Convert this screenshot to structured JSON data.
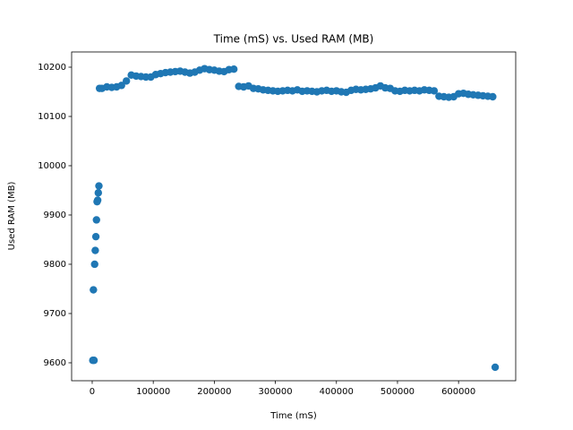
{
  "chart_data": {
    "type": "scatter",
    "title": "Time (mS) vs. Used RAM (MB)",
    "x_label": "Time (mS)",
    "y_label": "Used RAM (MB)",
    "color": "#1f77b4",
    "x": [
      1000,
      3000,
      2000,
      4000,
      5000,
      6000,
      7000,
      8000,
      9000,
      10000,
      11000,
      12000,
      16000,
      24000,
      32000,
      40000,
      48000,
      56000,
      64000,
      72000,
      80000,
      88000,
      96000,
      104000,
      112000,
      120000,
      128000,
      136000,
      144000,
      152000,
      160000,
      168000,
      176000,
      184000,
      192000,
      200000,
      208000,
      216000,
      224000,
      232000,
      240000,
      248000,
      256000,
      264000,
      272000,
      280000,
      288000,
      296000,
      304000,
      312000,
      320000,
      328000,
      336000,
      344000,
      352000,
      360000,
      368000,
      376000,
      384000,
      392000,
      400000,
      408000,
      416000,
      424000,
      432000,
      440000,
      448000,
      456000,
      464000,
      472000,
      480000,
      488000,
      496000,
      504000,
      512000,
      520000,
      528000,
      536000,
      544000,
      552000,
      560000,
      568000,
      576000,
      584000,
      592000,
      600000,
      608000,
      616000,
      624000,
      632000,
      640000,
      648000,
      656000,
      660000
    ],
    "values": [
      9605,
      9605,
      9748,
      9800,
      9828,
      9856,
      9890,
      9927,
      9930,
      9945,
      9959,
      10157,
      10157,
      10160,
      10159,
      10160,
      10163,
      10172,
      10184,
      10182,
      10181,
      10180,
      10180,
      10185,
      10187,
      10189,
      10190,
      10191,
      10192,
      10190,
      10188,
      10190,
      10194,
      10197,
      10195,
      10194,
      10192,
      10191,
      10195,
      10196,
      10161,
      10160,
      10162,
      10157,
      10156,
      10154,
      10153,
      10152,
      10151,
      10152,
      10153,
      10152,
      10154,
      10151,
      10152,
      10151,
      10150,
      10152,
      10153,
      10151,
      10152,
      10150,
      10149,
      10153,
      10155,
      10154,
      10155,
      10156,
      10158,
      10162,
      10158,
      10157,
      10152,
      10151,
      10153,
      10152,
      10153,
      10152,
      10154,
      10153,
      10152,
      10141,
      10140,
      10139,
      10140,
      10146,
      10147,
      10145,
      10144,
      10143,
      10142,
      10141,
      10140,
      9591
    ],
    "xlim": [
      -33700,
      693600
    ],
    "ylim": [
      9563.6,
      10230.9
    ],
    "xticks": [
      0,
      100000,
      200000,
      300000,
      400000,
      500000,
      600000
    ],
    "yticks": [
      9600,
      9700,
      9800,
      9900,
      10000,
      10100,
      10200
    ]
  }
}
